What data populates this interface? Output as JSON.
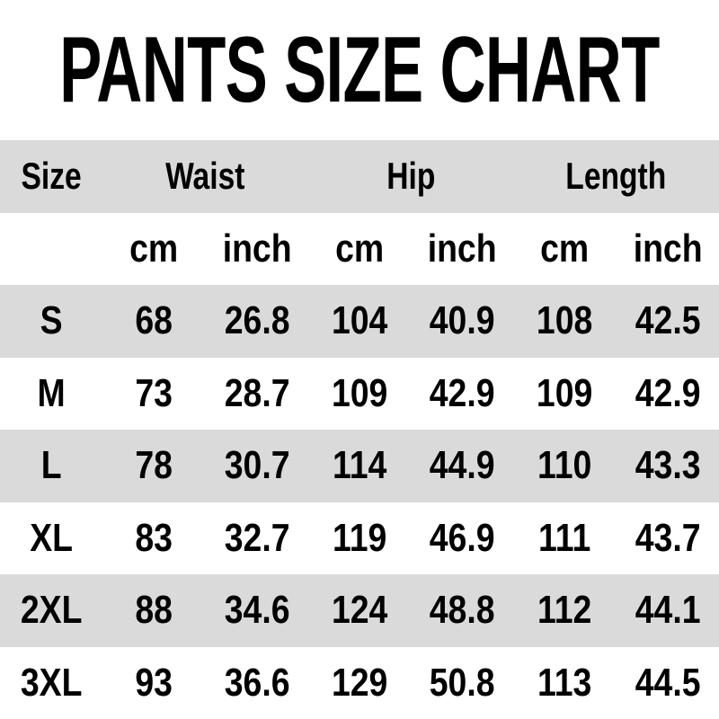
{
  "chart_data": {
    "type": "table",
    "title": "PANTS SIZE CHART",
    "group_headers": [
      {
        "label": "Size",
        "span": 1
      },
      {
        "label": "Waist",
        "span": 2
      },
      {
        "label": "Hip",
        "span": 2
      },
      {
        "label": "Length",
        "span": 2
      }
    ],
    "unit_headers": [
      "cm",
      "inch",
      "cm",
      "inch",
      "cm",
      "inch"
    ],
    "rows": [
      {
        "size": "S",
        "values": [
          "68",
          "26.8",
          "104",
          "40.9",
          "108",
          "42.5"
        ]
      },
      {
        "size": "M",
        "values": [
          "73",
          "28.7",
          "109",
          "42.9",
          "109",
          "42.9"
        ]
      },
      {
        "size": "L",
        "values": [
          "78",
          "30.7",
          "114",
          "44.9",
          "110",
          "43.3"
        ]
      },
      {
        "size": "XL",
        "values": [
          "83",
          "32.7",
          "119",
          "46.9",
          "111",
          "43.7"
        ]
      },
      {
        "size": "2XL",
        "values": [
          "88",
          "34.6",
          "124",
          "48.8",
          "112",
          "44.1"
        ]
      },
      {
        "size": "3XL",
        "values": [
          "93",
          "36.6",
          "129",
          "50.8",
          "113",
          "44.5"
        ]
      }
    ],
    "layout": {
      "striped_rows": true,
      "stripe_pattern": "gray-white-alternating",
      "legend_position": "none",
      "grid": false
    }
  },
  "colors": {
    "stripe": "#dadada",
    "text": "#000000",
    "page_background": "#ffffff"
  }
}
